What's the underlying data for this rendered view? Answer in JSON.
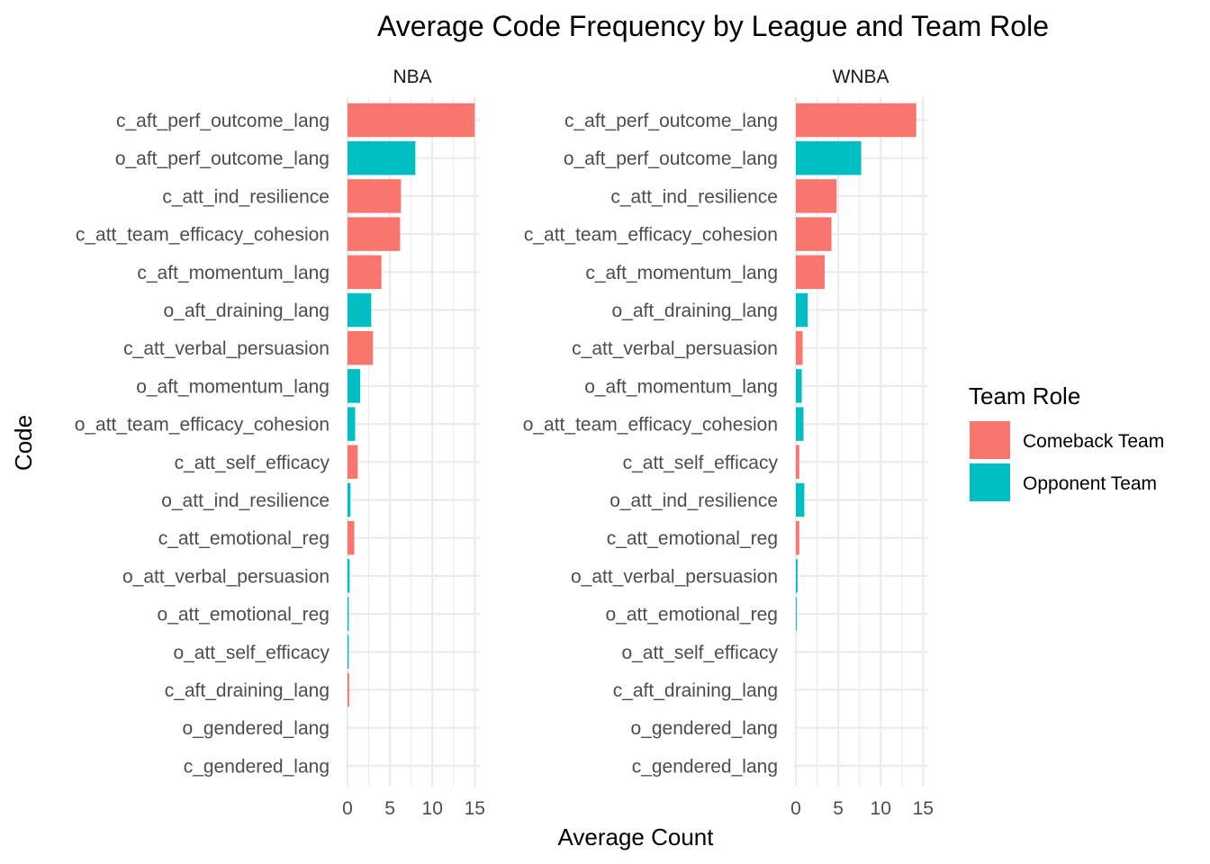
{
  "chart_data": {
    "type": "bar",
    "orientation": "horizontal",
    "title": "Average Code Frequency by League and Team Role",
    "xlabel": "Average Count",
    "ylabel": "Code",
    "xlim": [
      0,
      15.6
    ],
    "xticks": [
      0,
      5,
      10,
      15
    ],
    "grid": true,
    "legend": {
      "title": "Team Role",
      "placement": "right",
      "entries": [
        {
          "name": "Comeback Team",
          "color": "#F8766D"
        },
        {
          "name": "Opponent Team",
          "color": "#00BFC4"
        }
      ]
    },
    "categories": [
      "c_aft_perf_outcome_lang",
      "o_aft_perf_outcome_lang",
      "c_att_ind_resilience",
      "c_att_team_efficacy_cohesion",
      "c_aft_momentum_lang",
      "o_aft_draining_lang",
      "c_att_verbal_persuasion",
      "o_aft_momentum_lang",
      "o_att_team_efficacy_cohesion",
      "c_att_self_efficacy",
      "o_att_ind_resilience",
      "c_att_emotional_reg",
      "o_att_verbal_persuasion",
      "o_att_emotional_reg",
      "o_att_self_efficacy",
      "c_aft_draining_lang",
      "o_gendered_lang",
      "c_gendered_lang"
    ],
    "roles": [
      "Comeback Team",
      "Opponent Team",
      "Comeback Team",
      "Comeback Team",
      "Comeback Team",
      "Opponent Team",
      "Comeback Team",
      "Opponent Team",
      "Opponent Team",
      "Comeback Team",
      "Opponent Team",
      "Comeback Team",
      "Opponent Team",
      "Opponent Team",
      "Opponent Team",
      "Comeback Team",
      "Opponent Team",
      "Comeback Team"
    ],
    "panels": [
      {
        "name": "NBA",
        "values": [
          15.0,
          8.0,
          6.3,
          6.2,
          4.0,
          2.8,
          3.0,
          1.5,
          0.9,
          1.2,
          0.35,
          0.8,
          0.25,
          0.15,
          0.15,
          0.2,
          0.0,
          0.0
        ]
      },
      {
        "name": "WNBA",
        "values": [
          14.2,
          7.7,
          4.8,
          4.2,
          3.4,
          1.4,
          0.8,
          0.7,
          0.9,
          0.4,
          1.0,
          0.4,
          0.2,
          0.1,
          0.0,
          0.0,
          0.0,
          0.0
        ]
      }
    ]
  }
}
